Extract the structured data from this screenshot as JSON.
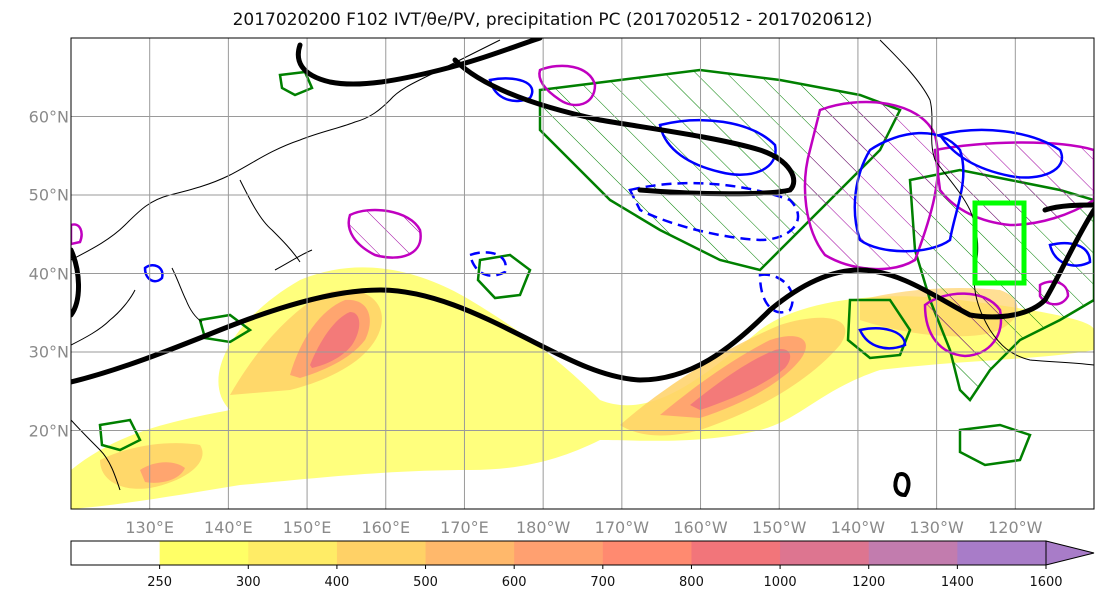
{
  "title": "2017020200 F102 IVT/θe/PV, precipitation PC (2017020512 - 2017020612)",
  "map": {
    "lat_labels": [
      {
        "text": "60°N",
        "lat": 60
      },
      {
        "text": "50°N",
        "lat": 50
      },
      {
        "text": "40°N",
        "lat": 40
      },
      {
        "text": "30°N",
        "lat": 30
      },
      {
        "text": "20°N",
        "lat": 20
      }
    ],
    "lon_labels": [
      {
        "text": "130°E",
        "lon": 130
      },
      {
        "text": "140°E",
        "lon": 140
      },
      {
        "text": "150°E",
        "lon": 150
      },
      {
        "text": "160°E",
        "lon": 160
      },
      {
        "text": "170°E",
        "lon": 170
      },
      {
        "text": "180°W",
        "lon": 180
      },
      {
        "text": "170°W",
        "lon": 190
      },
      {
        "text": "160°W",
        "lon": 200
      },
      {
        "text": "150°W",
        "lon": 210
      },
      {
        "text": "140°W",
        "lon": 220
      },
      {
        "text": "130°W",
        "lon": 230
      },
      {
        "text": "120°W",
        "lon": 240
      }
    ],
    "lon_range": [
      120,
      250
    ],
    "lat_range": [
      10,
      70
    ],
    "highlight_box_color": "#00ff00",
    "theta_e_contour_color": "#000000",
    "precip_hatch_color": "#008000",
    "pv_contour_color": "#0000ff",
    "pc_contour_color": "#c000c0"
  },
  "colorbar": {
    "ticks": [
      "250",
      "300",
      "400",
      "500",
      "600",
      "700",
      "800",
      "1000",
      "1200",
      "1400",
      "1600"
    ],
    "colors": [
      "#ffffff",
      "#ffff66",
      "#ffec66",
      "#ffd166",
      "#ffb86b",
      "#ffa070",
      "#ff8a70",
      "#f2757a",
      "#dd7590",
      "#c27cae",
      "#a87cc8"
    ]
  }
}
